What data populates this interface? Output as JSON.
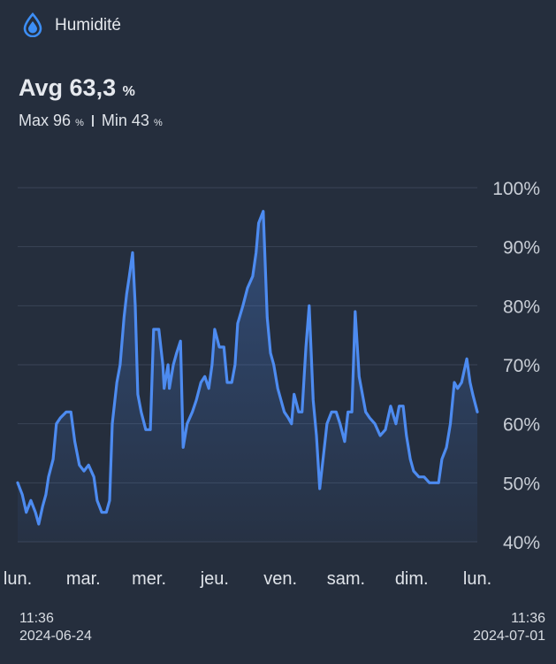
{
  "header": {
    "title": "Humidité",
    "avg_label": "Avg",
    "avg_value": "63,3",
    "max_label": "Max",
    "max_value": "96",
    "min_label": "Min",
    "min_value": "43",
    "unit": "%"
  },
  "chart_data": {
    "type": "line",
    "x": [
      0,
      0.07,
      0.13,
      0.2,
      0.27,
      0.32,
      0.38,
      0.43,
      0.47,
      0.54,
      0.59,
      0.65,
      0.74,
      0.81,
      0.87,
      0.94,
      1.01,
      1.08,
      1.16,
      1.21,
      1.28,
      1.35,
      1.4,
      1.44,
      1.51,
      1.56,
      1.62,
      1.66,
      1.7,
      1.75,
      1.79,
      1.83,
      1.88,
      1.95,
      2.02,
      2.07,
      2.15,
      2.21,
      2.23,
      2.29,
      2.31,
      2.37,
      2.42,
      2.48,
      2.52,
      2.58,
      2.66,
      2.72,
      2.79,
      2.85,
      2.91,
      2.96,
      3.0,
      3.07,
      3.14,
      3.19,
      3.26,
      3.31,
      3.35,
      3.43,
      3.5,
      3.58,
      3.63,
      3.67,
      3.74,
      3.8,
      3.85,
      3.9,
      3.96,
      4.01,
      4.06,
      4.12,
      4.17,
      4.21,
      4.28,
      4.33,
      4.39,
      4.44,
      4.5,
      4.55,
      4.6,
      4.66,
      4.71,
      4.78,
      4.85,
      4.91,
      4.98,
      5.03,
      5.09,
      5.14,
      5.2,
      5.25,
      5.3,
      5.36,
      5.44,
      5.52,
      5.6,
      5.68,
      5.76,
      5.81,
      5.87,
      5.92,
      5.98,
      6.03,
      6.11,
      6.19,
      6.27,
      6.35,
      6.41,
      6.46,
      6.53,
      6.59,
      6.65,
      6.7,
      6.76,
      6.84,
      6.89,
      6.93,
      7.0
    ],
    "series": [
      {
        "color": "#4d8bf0",
        "values": [
          50,
          48,
          45,
          47,
          45,
          43,
          46,
          48,
          51,
          54,
          60,
          61,
          62,
          62,
          57,
          53,
          52,
          53,
          51,
          47,
          45,
          45,
          47,
          60,
          67,
          70,
          78,
          82,
          85,
          89,
          80,
          65,
          62,
          59,
          59,
          76,
          76,
          70,
          66,
          70,
          66,
          70,
          72,
          74,
          56,
          60,
          62,
          64,
          67,
          68,
          66,
          70,
          76,
          73,
          73,
          67,
          67,
          70,
          77,
          80,
          83,
          85,
          89,
          94,
          96,
          78,
          72,
          70,
          66,
          64,
          62,
          61,
          60,
          65,
          62,
          62,
          73,
          80,
          64,
          58,
          49,
          55,
          60,
          62,
          62,
          60,
          57,
          62,
          62,
          79,
          68,
          65,
          62,
          61,
          60,
          58,
          59,
          63,
          60,
          63,
          63,
          58,
          54,
          52,
          51,
          51,
          50,
          50,
          50,
          54,
          56,
          60,
          67,
          66,
          67,
          71,
          67,
          65,
          62
        ]
      }
    ],
    "xlim": [
      0,
      7
    ],
    "xticks": [
      {
        "value": 0,
        "label": "lun."
      },
      {
        "value": 1,
        "label": "mar."
      },
      {
        "value": 2,
        "label": "mer."
      },
      {
        "value": 3,
        "label": "jeu."
      },
      {
        "value": 4,
        "label": "ven."
      },
      {
        "value": 5,
        "label": "sam."
      },
      {
        "value": 6,
        "label": "dim."
      },
      {
        "value": 7,
        "label": "lun."
      }
    ],
    "ylim": [
      40,
      100
    ],
    "yticks": [
      {
        "value": 40,
        "label": "40%"
      },
      {
        "value": 50,
        "label": "50%"
      },
      {
        "value": 60,
        "label": "60%"
      },
      {
        "value": 70,
        "label": "70%"
      },
      {
        "value": 80,
        "label": "80%"
      },
      {
        "value": 90,
        "label": "90%"
      },
      {
        "value": 100,
        "label": "100%"
      }
    ],
    "grid": true
  },
  "range": {
    "start_time": "11:36",
    "start_date": "2024-06-24",
    "end_time": "11:36",
    "end_date": "2024-07-01"
  }
}
